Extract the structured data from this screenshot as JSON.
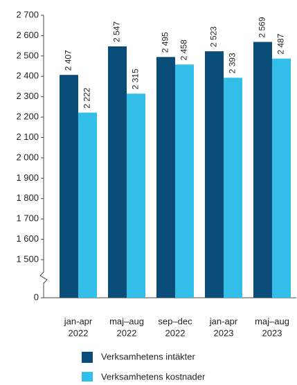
{
  "chart_data": {
    "type": "bar",
    "categories": [
      [
        "jan-apr",
        "2022"
      ],
      [
        "maj–aug",
        "2022"
      ],
      [
        "sep–dec",
        "2022"
      ],
      [
        "jan-apr",
        "2023"
      ],
      [
        "maj–aug",
        "2023"
      ]
    ],
    "series": [
      {
        "name": "Verksamhetens intäkter",
        "color": "#0a4d78",
        "values": [
          2407,
          2547,
          2495,
          2523,
          2569
        ],
        "value_labels": [
          "2 407",
          "2 547",
          "2 495",
          "2 523",
          "2 569"
        ]
      },
      {
        "name": "Verksamhetens kostnader",
        "color": "#33bde9",
        "values": [
          2222,
          2315,
          2458,
          2393,
          2487
        ],
        "value_labels": [
          "2 222",
          "2 315",
          "2 458",
          "2 393",
          "2 487"
        ]
      }
    ],
    "ylim": [
      0,
      2700
    ],
    "axis_break": [
      0,
      1500
    ],
    "yticks": [
      0,
      {
        "value": 1500,
        "label": "1 500"
      },
      {
        "value": 1600,
        "label": "1 600"
      },
      {
        "value": 1700,
        "label": "1 700"
      },
      {
        "value": 1800,
        "label": "1 800"
      },
      {
        "value": 1900,
        "label": "1 900"
      },
      {
        "value": 2000,
        "label": "2 000"
      },
      {
        "value": 2100,
        "label": "2 100"
      },
      {
        "value": 2200,
        "label": "2 200"
      },
      {
        "value": 2300,
        "label": "2 300"
      },
      {
        "value": 2400,
        "label": "2 400"
      },
      {
        "value": 2500,
        "label": "2 500"
      },
      {
        "value": 2600,
        "label": "2 600"
      },
      {
        "value": 2700,
        "label": "2 700"
      }
    ],
    "grid": false,
    "legend": "bottom"
  }
}
